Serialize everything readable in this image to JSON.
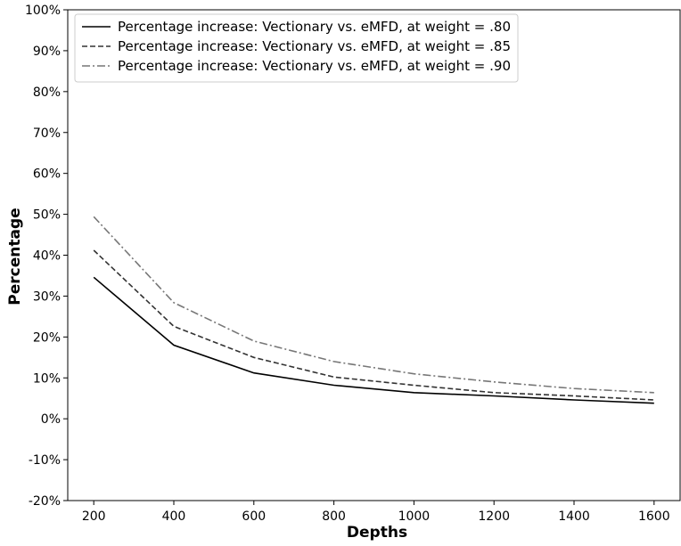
{
  "chart_data": {
    "type": "line",
    "title": "",
    "xlabel": "Depths",
    "ylabel": "Percentage",
    "x": [
      200,
      400,
      600,
      800,
      1000,
      1200,
      1400,
      1600
    ],
    "xticks": [
      200,
      400,
      600,
      800,
      1000,
      1200,
      1400,
      1600
    ],
    "xlim": [
      135,
      1665
    ],
    "ylim": [
      -20,
      100
    ],
    "yticks": [
      -20,
      -10,
      0,
      10,
      20,
      30,
      40,
      50,
      60,
      70,
      80,
      90,
      100
    ],
    "ytick_labels": [
      "-20%",
      "-10%",
      "0%",
      "10%",
      "20%",
      "30%",
      "40%",
      "50%",
      "60%",
      "70%",
      "80%",
      "90%",
      "100%"
    ],
    "grid": false,
    "legend_position": "top-left",
    "series": [
      {
        "name": "Percentage increase: Vectionary vs. eMFD, at weight = .80",
        "values": [
          34.6,
          18.0,
          11.2,
          8.2,
          6.4,
          5.6,
          4.6,
          3.8
        ],
        "color": "#000000",
        "dash": "solid"
      },
      {
        "name": "Percentage increase: Vectionary vs. eMFD, at weight = .85",
        "values": [
          41.2,
          22.6,
          15.0,
          10.2,
          8.2,
          6.4,
          5.6,
          4.6
        ],
        "color": "#333333",
        "dash": "dashed"
      },
      {
        "name": "Percentage increase: Vectionary vs. eMFD, at weight = .90",
        "values": [
          49.4,
          28.4,
          19.0,
          14.0,
          11.0,
          9.0,
          7.4,
          6.4
        ],
        "color": "#777777",
        "dash": "dashdot"
      }
    ]
  }
}
